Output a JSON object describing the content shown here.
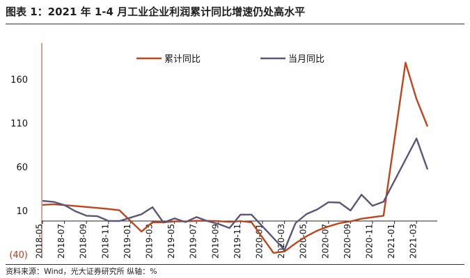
{
  "title": "图表 1：2021 年 1-4 月工业企业利润累计同比增速仍处高水平",
  "source": "资料来源：Wind，光大证券研究所   纵轴：%",
  "chart_data": {
    "type": "line",
    "ylim": [
      -40,
      210
    ],
    "yticks": [
      -40,
      10,
      60,
      110,
      160
    ],
    "ytick_labels": [
      "(40)",
      "10",
      "60",
      "110",
      "160"
    ],
    "grid": false,
    "legend_position": "top",
    "x": [
      "2018-05",
      "2018-06",
      "2018-07",
      "2018-08",
      "2018-09",
      "2018-10",
      "2018-11",
      "2018-12",
      "2019-01",
      "2019-02",
      "2019-03",
      "2019-04",
      "2019-05",
      "2019-06",
      "2019-07",
      "2019-08",
      "2019-09",
      "2019-10",
      "2019-11",
      "2019-12",
      "2020-01",
      "2020-02",
      "2020-03",
      "2020-04",
      "2020-05",
      "2020-06",
      "2020-07",
      "2020-08",
      "2020-09",
      "2020-10",
      "2020-11",
      "2020-12",
      "2021-01",
      "2021-02",
      "2021-03",
      "2021-04"
    ],
    "xtick_labels": [
      "2018-05",
      "2018-07",
      "2018-09",
      "2018-11",
      "2019-01",
      "2019-03",
      "2019-05",
      "2019-07",
      "2019-09",
      "2019-11",
      "2020-01",
      "2020-03",
      "2020-05",
      "2020-07",
      "2020-09",
      "2020-11",
      "2021-01",
      "2021-03"
    ],
    "series": [
      {
        "name": "累计同比",
        "color": "#c0431b",
        "values": [
          16.5,
          17.2,
          16.2,
          15.2,
          14.1,
          13.0,
          11.8,
          10.3,
          null,
          -14.0,
          -3.3,
          -3.4,
          -2.3,
          -2.4,
          -1.7,
          -1.7,
          -2.1,
          -2.9,
          -2.1,
          -3.3,
          null,
          -38.3,
          -36.7,
          -27.4,
          -19.3,
          -12.8,
          -8.1,
          -4.4,
          -2.4,
          0.7,
          2.4,
          4.1,
          null,
          178.9,
          137.3,
          106.0
        ]
      },
      {
        "name": "当月同比",
        "color": "#5a5678",
        "values": [
          21.1,
          20.0,
          16.2,
          9.2,
          4.1,
          3.6,
          -1.8,
          -1.9,
          null,
          5.8,
          13.9,
          -3.7,
          1.1,
          -3.1,
          2.6,
          -2.0,
          -5.3,
          -9.9,
          5.4,
          5.4,
          null,
          null,
          -34.9,
          -4.3,
          6.0,
          11.5,
          19.6,
          19.1,
          10.1,
          28.2,
          15.5,
          20.1,
          null,
          null,
          92.3,
          57.0
        ]
      }
    ]
  }
}
